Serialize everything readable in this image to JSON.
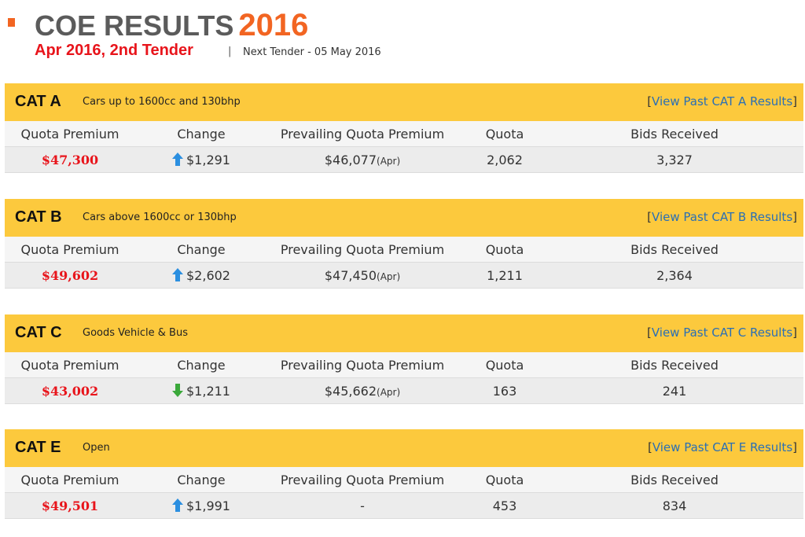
{
  "header": {
    "title": "COE RESULTS",
    "year": "2016",
    "tender": "Apr 2016, 2nd Tender",
    "separator": "|",
    "next_tender": "Next Tender - 05 May 2016"
  },
  "colors": {
    "accent_orange": "#f26522",
    "header_bar": "#fcc93d",
    "premium_red": "#e8141b",
    "arrow_up": "#2b8fe0",
    "arrow_down": "#3aa83a",
    "link_blue": "#2a6fb5"
  },
  "column_labels": {
    "quota_premium": "Quota Premium",
    "change": "Change",
    "prevailing": "Prevailing Quota Premium",
    "quota": "Quota",
    "bids": "Bids Received"
  },
  "categories": [
    {
      "name": "CAT A",
      "desc": "Cars up to 1600cc and 130bhp",
      "link_open": "[",
      "link_text": "View Past CAT A Results",
      "link_close": "]",
      "quota_premium": "$47,300",
      "change_direction": "up",
      "change_icon": "arrow-up-icon",
      "change": "$1,291",
      "prevailing": "$46,077",
      "prevailing_suffix": "(Apr)",
      "quota": "2,062",
      "bids": "3,327"
    },
    {
      "name": "CAT B",
      "desc": "Cars above 1600cc or 130bhp",
      "link_open": "[",
      "link_text": "View Past CAT B Results",
      "link_close": "]",
      "quota_premium": "$49,602",
      "change_direction": "up",
      "change_icon": "arrow-up-icon",
      "change": "$2,602",
      "prevailing": "$47,450",
      "prevailing_suffix": "(Apr)",
      "quota": "1,211",
      "bids": "2,364"
    },
    {
      "name": "CAT C",
      "desc": "Goods Vehicle & Bus",
      "link_open": "[",
      "link_text": "View Past CAT C Results",
      "link_close": "]",
      "quota_premium": "$43,002",
      "change_direction": "down",
      "change_icon": "arrow-down-icon",
      "change": "$1,211",
      "prevailing": "$45,662",
      "prevailing_suffix": "(Apr)",
      "quota": "163",
      "bids": "241"
    },
    {
      "name": "CAT E",
      "desc": "Open",
      "link_open": "[",
      "link_text": "View Past CAT E Results",
      "link_close": "]",
      "quota_premium": "$49,501",
      "change_direction": "up",
      "change_icon": "arrow-up-icon",
      "change": "$1,991",
      "prevailing": "-",
      "prevailing_suffix": "",
      "quota": "453",
      "bids": "834"
    }
  ]
}
